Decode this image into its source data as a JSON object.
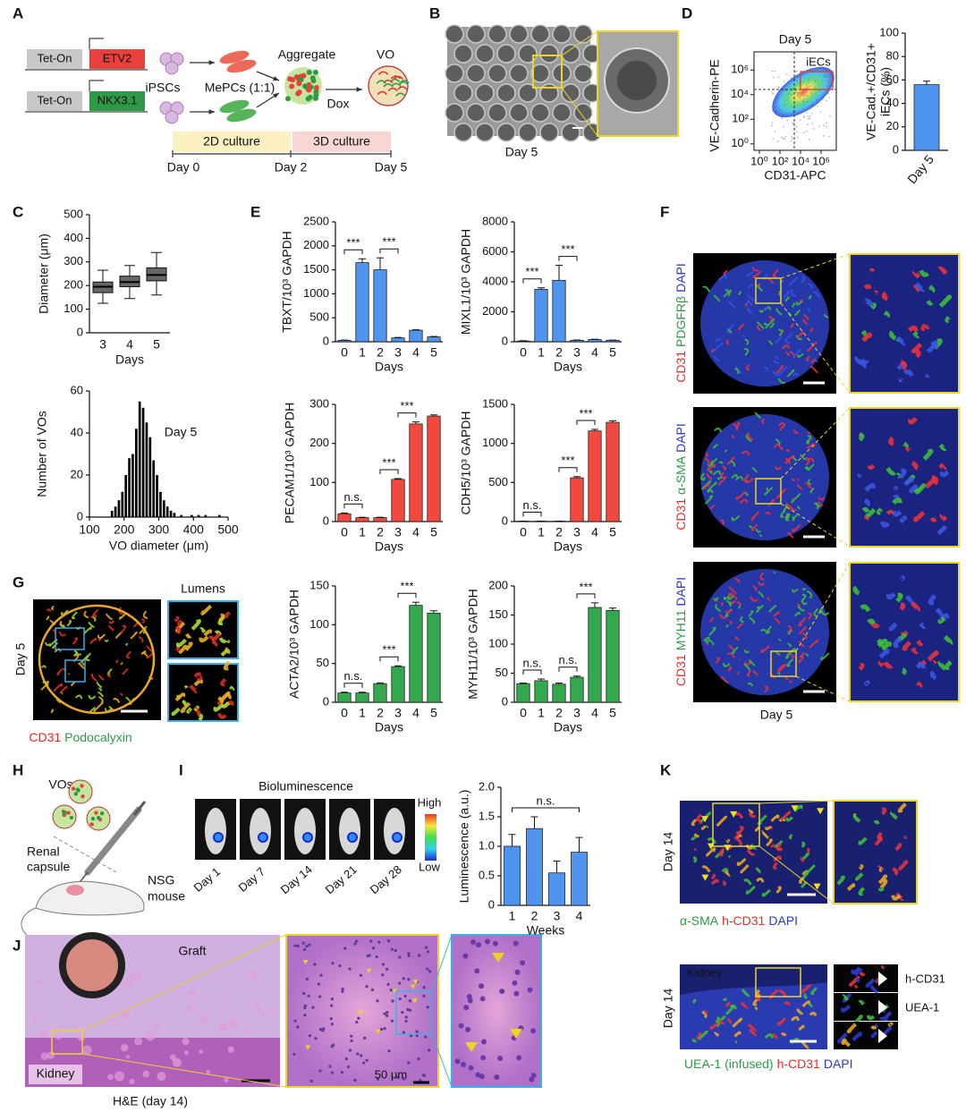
{
  "A": {
    "label": "A",
    "promoters": [
      "Tet-On",
      "Tet-On"
    ],
    "genes": [
      "ETV2",
      "NKX3.1"
    ],
    "ipscs": "iPSCs",
    "mepcs": "MePCs (1:1)",
    "aggregate": "Aggregate",
    "vo": "VO",
    "dox": "Dox",
    "culture": [
      "2D culture",
      "3D culture"
    ],
    "days": [
      "Day 0",
      "Day 2",
      "Day 5"
    ]
  },
  "B": {
    "label": "B",
    "caption": "Day 5"
  },
  "C": {
    "label": "C"
  },
  "D": {
    "label": "D"
  },
  "E": {
    "label": "E"
  },
  "F": {
    "label": "F",
    "stains": [
      [
        "CD31",
        "PDGFRβ",
        "DAPI"
      ],
      [
        "CD31",
        "α-SMA",
        "DAPI"
      ],
      [
        "CD31",
        "MYH11",
        "DAPI"
      ]
    ],
    "caption": "Day 5"
  },
  "G": {
    "label": "G",
    "day": "Day 5",
    "lumens": "Lumens",
    "stains": [
      "CD31",
      "Podocalyxin"
    ]
  },
  "H": {
    "label": "H",
    "vos": "VOs",
    "site": [
      "Renal",
      "capsule"
    ],
    "host": [
      "NSG",
      "mouse"
    ]
  },
  "I": {
    "label": "I",
    "title": "Bioluminescence",
    "scale": [
      "High",
      "Low"
    ],
    "days": [
      "Day 1",
      "Day 7",
      "Day 14",
      "Day 21",
      "Day 28"
    ]
  },
  "J": {
    "label": "J",
    "graft": "Graft",
    "kidney": "Kidney",
    "caption": "H&E (day 14)",
    "scale_bar": "50 μm"
  },
  "K": {
    "label": "K",
    "day": [
      "Day 14",
      "Day 14"
    ],
    "stains_top": [
      "α-SMA",
      "h-CD31",
      "DAPI"
    ],
    "kidney": "Kidney",
    "stains_bottom": [
      "UEA-1 (infused)",
      "h-CD31",
      "DAPI"
    ],
    "insets": [
      "h-CD31",
      "UEA-1"
    ]
  },
  "chart_data": [
    {
      "type": "density",
      "title": "Day 5",
      "xlabel": "CD31-APC",
      "ylabel": "VE-Cadherin-PE",
      "log": true,
      "gate_label": "iECs",
      "xlim": [
        0.3,
        30000000
      ],
      "ylim": [
        0.3,
        30000000
      ],
      "xticks": [
        {
          "value": 1,
          "label": "10⁰"
        },
        {
          "value": 100,
          "label": "10²"
        },
        {
          "value": 10000,
          "label": "10⁴"
        },
        {
          "value": 1000000,
          "label": "10⁶"
        }
      ],
      "yticks": [
        {
          "value": 1,
          "label": "10⁰"
        },
        {
          "value": 100,
          "label": "10²"
        },
        {
          "value": 10000,
          "label": "10⁴"
        },
        {
          "value": 1000000,
          "label": "10⁶"
        }
      ]
    },
    {
      "type": "bar",
      "ylabel": [
        "VE-Cad.+/CD31+",
        "iECs (%)"
      ],
      "categories": [
        "Day 5"
      ],
      "values": [
        56
      ],
      "errors": [
        3
      ],
      "color": "#4f94ef",
      "ylim": [
        0,
        100
      ],
      "yticks": [
        0,
        20,
        40,
        60,
        80,
        100
      ],
      "annotations": []
    },
    {
      "type": "box",
      "xlabel": "Days",
      "ylabel": "Diameter (μm)",
      "categories": [
        "3",
        "4",
        "5"
      ],
      "color": "#666666",
      "boxes": [
        {
          "min": 125,
          "q1": 170,
          "median": 195,
          "q3": 215,
          "max": 265
        },
        {
          "min": 145,
          "q1": 195,
          "median": 215,
          "q3": 240,
          "max": 285
        },
        {
          "min": 160,
          "q1": 220,
          "median": 245,
          "q3": 275,
          "max": 340
        }
      ],
      "ylim": [
        0,
        500
      ],
      "yticks": [
        0,
        100,
        200,
        300,
        400,
        500
      ]
    },
    {
      "type": "histogram",
      "xlabel": "VO diameter (μm)",
      "ylabel": "Number of VOs",
      "annotation": "Day 5",
      "color": "#000000",
      "bins": [
        160,
        170,
        180,
        190,
        200,
        210,
        220,
        230,
        240,
        250,
        260,
        270,
        280,
        290,
        300,
        310,
        320,
        330,
        340,
        350,
        360,
        370,
        380,
        390,
        400,
        410,
        420,
        430,
        440,
        450,
        460,
        470,
        480,
        490
      ],
      "counts": [
        3,
        5,
        8,
        12,
        20,
        28,
        30,
        42,
        55,
        52,
        45,
        38,
        27,
        20,
        12,
        8,
        5,
        3,
        2,
        0,
        1,
        0,
        0,
        1,
        0,
        1,
        0,
        1,
        0,
        0,
        0,
        1,
        0
      ],
      "xlim": [
        100,
        500
      ],
      "xticks": [
        100,
        200,
        300,
        400,
        500
      ],
      "ylim": [
        0,
        60
      ],
      "yticks": [
        0,
        20,
        40,
        60
      ]
    },
    {
      "type": "bar",
      "xlabel": "Days",
      "ylabel": "TBXT/10³ GAPDH",
      "categories": [
        "0",
        "1",
        "2",
        "3",
        "4",
        "5"
      ],
      "values": [
        30,
        1650,
        1500,
        80,
        240,
        100
      ],
      "errors": [
        5,
        80,
        250,
        10,
        10,
        10
      ],
      "color": "#4f94ef",
      "ylim": [
        0,
        2500
      ],
      "yticks": [
        0,
        500,
        1000,
        1500,
        2000,
        2500
      ],
      "annotations": [
        {
          "text": "***",
          "between": [
            0,
            1
          ]
        },
        {
          "text": "***",
          "between": [
            2,
            3
          ]
        }
      ]
    },
    {
      "type": "bar",
      "xlabel": "Days",
      "ylabel": "MIXL1/10³ GAPDH",
      "categories": [
        "0",
        "1",
        "2",
        "3",
        "4",
        "5"
      ],
      "values": [
        50,
        3500,
        4100,
        100,
        150,
        100
      ],
      "errors": [
        20,
        100,
        1000,
        20,
        20,
        10
      ],
      "color": "#4f94ef",
      "ylim": [
        0,
        8000
      ],
      "yticks": [
        0,
        2000,
        4000,
        6000,
        8000
      ],
      "annotations": [
        {
          "text": "***",
          "between": [
            0,
            1
          ]
        },
        {
          "text": "***",
          "between": [
            2,
            3
          ]
        }
      ]
    },
    {
      "type": "bar",
      "xlabel": "Days",
      "ylabel": "PECAM1/10³ GAPDH",
      "categories": [
        "0",
        "1",
        "2",
        "3",
        "4",
        "5"
      ],
      "values": [
        20,
        10,
        10,
        108,
        250,
        270
      ],
      "errors": [
        2,
        1,
        1,
        2,
        5,
        3
      ],
      "color": "#f2493f",
      "ylim": [
        0,
        300
      ],
      "yticks": [
        0,
        100,
        200,
        300
      ],
      "annotations": [
        {
          "text": "n.s.",
          "between": [
            0,
            1
          ]
        },
        {
          "text": "***",
          "between": [
            2,
            3
          ]
        },
        {
          "text": "***",
          "between": [
            3,
            4
          ]
        }
      ]
    },
    {
      "type": "bar",
      "xlabel": "Days",
      "ylabel": "CDH5/10³ GAPDH",
      "categories": [
        "0",
        "1",
        "2",
        "3",
        "4",
        "5"
      ],
      "values": [
        5,
        5,
        5,
        560,
        1160,
        1270
      ],
      "errors": [
        1,
        1,
        1,
        15,
        20,
        20
      ],
      "color": "#f2493f",
      "ylim": [
        0,
        1500
      ],
      "yticks": [
        0,
        500,
        1000,
        1500
      ],
      "annotations": [
        {
          "text": "n.s.",
          "between": [
            0,
            1
          ]
        },
        {
          "text": "***",
          "between": [
            2,
            3
          ]
        },
        {
          "text": "***",
          "between": [
            3,
            4
          ]
        }
      ]
    },
    {
      "type": "bar",
      "xlabel": "Days",
      "ylabel": "ACTA2/10³ GAPDH",
      "categories": [
        "0",
        "1",
        "2",
        "3",
        "4",
        "5"
      ],
      "values": [
        12,
        12,
        24,
        46,
        125,
        115
      ],
      "errors": [
        1,
        1,
        1,
        1,
        4,
        3
      ],
      "color": "#33a84c",
      "ylim": [
        0,
        150
      ],
      "yticks": [
        0,
        50,
        100,
        150
      ],
      "annotations": [
        {
          "text": "n.s.",
          "between": [
            0,
            1
          ]
        },
        {
          "text": "***",
          "between": [
            2,
            3
          ]
        },
        {
          "text": "***",
          "between": [
            3,
            4
          ]
        }
      ]
    },
    {
      "type": "bar",
      "xlabel": "Days",
      "ylabel": "MYH11/10³ GAPDH",
      "categories": [
        "0",
        "1",
        "2",
        "3",
        "4",
        "5"
      ],
      "values": [
        32,
        37,
        31,
        43,
        163,
        158
      ],
      "errors": [
        1,
        3,
        2,
        2,
        8,
        4
      ],
      "color": "#33a84c",
      "ylim": [
        0,
        200
      ],
      "yticks": [
        0,
        50,
        100,
        150,
        200
      ],
      "annotations": [
        {
          "text": "n.s.",
          "between": [
            0,
            1
          ]
        },
        {
          "text": "n.s.",
          "between": [
            2,
            3
          ]
        },
        {
          "text": "***",
          "between": [
            3,
            4
          ]
        }
      ]
    },
    {
      "type": "bar",
      "xlabel": "Weeks",
      "ylabel": "Luminescence (a.u.)",
      "categories": [
        "1",
        "2",
        "3",
        "4"
      ],
      "values": [
        1.0,
        1.3,
        0.55,
        0.9
      ],
      "errors": [
        0.2,
        0.2,
        0.2,
        0.25
      ],
      "color": "#4f94ef",
      "ylim": [
        0,
        2
      ],
      "yticks": [
        0,
        0.5,
        {
          "value": 1,
          "label": "1.0"
        },
        1.5,
        {
          "value": 2,
          "label": "2.0"
        }
      ],
      "annotations": [
        {
          "text": "n.s.",
          "between": [
            0,
            3
          ]
        }
      ]
    }
  ]
}
